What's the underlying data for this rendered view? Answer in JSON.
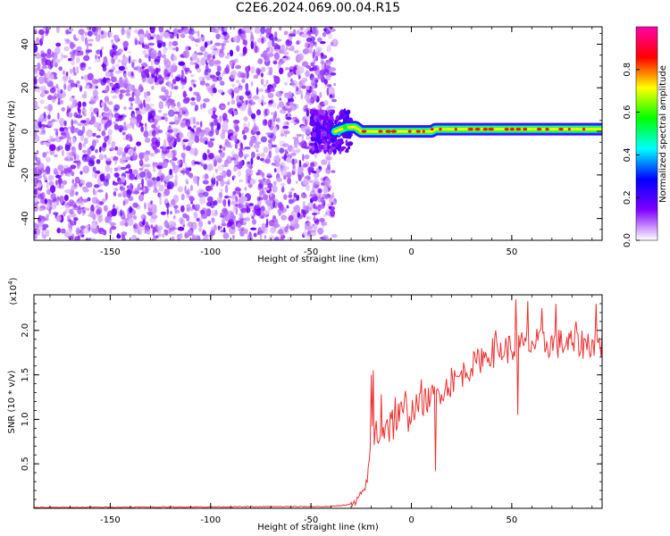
{
  "title": "C2E6.2024.069.00.04.R15",
  "chart_data": [
    {
      "type": "heatmap",
      "title": "C2E6.2024.069.00.04.R15",
      "xlabel": "Height of straight line (km)",
      "ylabel": "Frequency (Hz)",
      "xlim": [
        -188,
        95
      ],
      "ylim": [
        -50,
        48
      ],
      "x_ticks": [
        -150,
        -100,
        -50,
        0,
        50
      ],
      "y_ticks": [
        -40,
        -20,
        0,
        20,
        40
      ],
      "x_tick_labels": [
        "-150",
        "-100",
        "-50",
        "0",
        "50"
      ],
      "y_tick_labels": [
        "-40",
        "-20",
        "0",
        "20",
        "40"
      ],
      "noise_region_km": [
        -188,
        -38
      ],
      "transition_region_km": [
        -50,
        -30
      ],
      "signal": {
        "centerline_hz": [
          [
            -38,
            0
          ],
          [
            -32,
            2
          ],
          [
            -28,
            2
          ],
          [
            -25,
            0
          ],
          [
            10,
            0
          ],
          [
            12,
            1
          ],
          [
            95,
            1
          ]
        ],
        "peak_amplitude": 0.85
      },
      "colorbar": {
        "label": "Normalized spectral amplitude",
        "range": [
          0,
          1
        ],
        "ticks": [
          0.0,
          0.2,
          0.4,
          0.6,
          0.8
        ],
        "tick_labels": [
          "0.0",
          "0.2",
          "0.4",
          "0.6",
          "0.8"
        ],
        "colors": [
          "#ffffff",
          "#7f00ff",
          "#0000ff",
          "#00ffff",
          "#00ff00",
          "#ffff00",
          "#ff0000",
          "#ff00aa"
        ]
      }
    },
    {
      "type": "line",
      "xlabel": "Height of straight line (km)",
      "ylabel": "SNR (10 * v/v)",
      "y_multiplier": "(x10⁴)",
      "y_multiplier_base": "(x10",
      "y_multiplier_exp": "4",
      "xlim": [
        -188,
        95
      ],
      "ylim": [
        0,
        2.4
      ],
      "x_ticks": [
        -150,
        -100,
        -50,
        0,
        50
      ],
      "y_ticks": [
        0.5,
        1.0,
        1.5,
        2.0
      ],
      "x_tick_labels": [
        "-150",
        "-100",
        "-50",
        "0",
        "50"
      ],
      "y_tick_labels": [
        "0.5",
        "1.0",
        "1.5",
        "2.0"
      ],
      "series": [
        {
          "color": "#ee3030",
          "envelope": [
            [
              -188,
              0.01
            ],
            [
              -40,
              0.02
            ],
            [
              -28,
              0.05
            ],
            [
              -25,
              0.15
            ],
            [
              -22,
              0.3
            ],
            [
              -20,
              0.8
            ],
            [
              -18,
              0.85
            ],
            [
              -10,
              0.95
            ],
            [
              0,
              1.1
            ],
            [
              10,
              1.25
            ],
            [
              20,
              1.4
            ],
            [
              30,
              1.6
            ],
            [
              40,
              1.75
            ],
            [
              50,
              1.8
            ],
            [
              60,
              1.85
            ],
            [
              70,
              1.85
            ],
            [
              80,
              1.85
            ],
            [
              95,
              1.85
            ]
          ],
          "spikes": [
            [
              -20,
              1.5
            ],
            [
              -19,
              1.55
            ],
            [
              -15,
              1.28
            ],
            [
              -12,
              1.0
            ],
            [
              -8,
              1.25
            ],
            [
              -3,
              1.32
            ],
            [
              5,
              1.45
            ],
            [
              12,
              0.42
            ],
            [
              20,
              1.58
            ],
            [
              35,
              1.8
            ],
            [
              42,
              2.0
            ],
            [
              52,
              2.35
            ],
            [
              58,
              2.33
            ],
            [
              53,
              1.05
            ],
            [
              65,
              2.25
            ],
            [
              72,
              2.3
            ],
            [
              82,
              2.1
            ],
            [
              92,
              2.3
            ]
          ]
        }
      ]
    }
  ]
}
